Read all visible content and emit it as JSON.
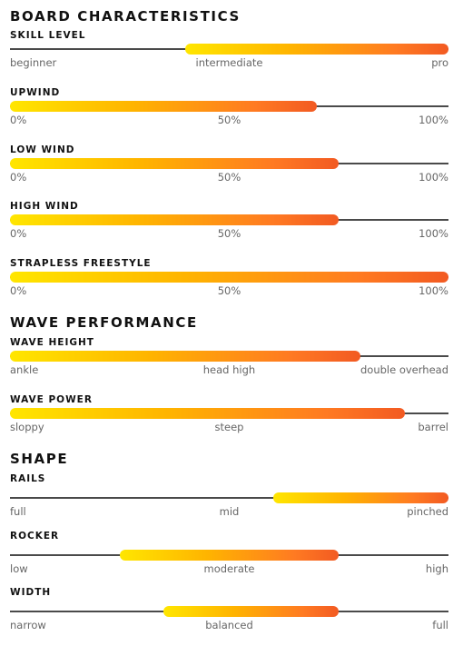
{
  "sections": [
    {
      "title": "BOARD CHARACTERISTICS",
      "metrics": [
        {
          "name": "SKILL LEVEL",
          "labels": [
            "beginner",
            "intermediate",
            "pro"
          ],
          "range": [
            0.4,
            1.0
          ]
        },
        {
          "name": "UPWIND",
          "labels": [
            "0%",
            "50%",
            "100%"
          ],
          "range": [
            0.0,
            0.7
          ]
        },
        {
          "name": "LOW WIND",
          "labels": [
            "0%",
            "50%",
            "100%"
          ],
          "range": [
            0.0,
            0.75
          ]
        },
        {
          "name": "HIGH WIND",
          "labels": [
            "0%",
            "50%",
            "100%"
          ],
          "range": [
            0.0,
            0.75
          ]
        },
        {
          "name": "STRAPLESS FREESTYLE",
          "labels": [
            "0%",
            "50%",
            "100%"
          ],
          "range": [
            0.0,
            1.0
          ]
        }
      ]
    },
    {
      "title": "WAVE PERFORMANCE",
      "metrics": [
        {
          "name": "WAVE HEIGHT",
          "labels": [
            "ankle",
            "head high",
            "double overhead"
          ],
          "range": [
            0.0,
            0.8
          ]
        },
        {
          "name": "WAVE POWER",
          "labels": [
            "sloppy",
            "steep",
            "barrel"
          ],
          "range": [
            0.0,
            0.9
          ]
        }
      ]
    },
    {
      "title": "SHAPE",
      "metrics": [
        {
          "name": "RAILS",
          "labels": [
            "full",
            "mid",
            "pinched"
          ],
          "range": [
            0.6,
            1.0
          ]
        },
        {
          "name": "ROCKER",
          "labels": [
            "low",
            "moderate",
            "high"
          ],
          "range": [
            0.25,
            0.75
          ]
        },
        {
          "name": "WIDTH",
          "labels": [
            "narrow",
            "balanced",
            "full"
          ],
          "range": [
            0.35,
            0.75
          ]
        }
      ]
    }
  ],
  "colors": {
    "fill_start": "#ffe600",
    "fill_end": "#f25a22",
    "track": "#4a4a4a"
  }
}
